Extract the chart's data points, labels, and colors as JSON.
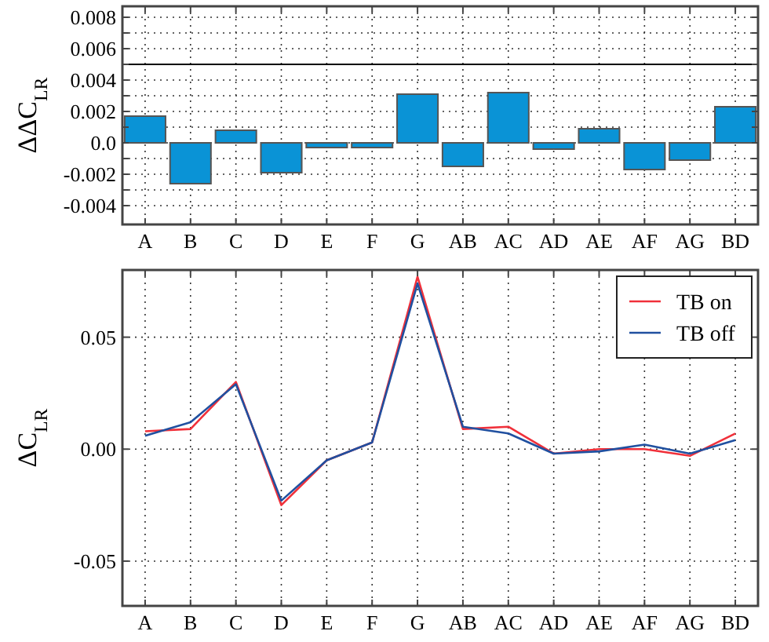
{
  "chart_data": [
    {
      "type": "bar",
      "ylabel": "ΔΔC$_{LR}$",
      "categories": [
        "A",
        "B",
        "C",
        "D",
        "E",
        "F",
        "G",
        "AB",
        "AC",
        "AD",
        "AE",
        "AF",
        "AG",
        "BD"
      ],
      "values": [
        0.0017,
        -0.0026,
        0.0008,
        -0.0019,
        -0.0003,
        -0.0003,
        0.0031,
        -0.0015,
        0.0032,
        -0.0004,
        0.0009,
        -0.0017,
        -0.0011,
        0.0023
      ],
      "color": "#0a93d6",
      "ylim": [
        -0.0052,
        0.0087
      ],
      "yticks": [
        -0.004,
        {
          "value": -0.003,
          "label": null
        },
        -0.002,
        {
          "value": -0.001,
          "label": null
        },
        {
          "value": 0.0,
          "label": "0.0"
        },
        {
          "value": 0.001,
          "label": null
        },
        0.002,
        {
          "value": 0.003,
          "label": null
        },
        0.004,
        {
          "value": 0.005,
          "label": null
        },
        0.006,
        {
          "value": 0.007,
          "label": null
        },
        0.008
      ],
      "grid": true,
      "ref_lines": [
        {
          "axis": "y",
          "value": 0.005,
          "color": "#000000"
        }
      ]
    },
    {
      "type": "line",
      "ylabel": "ΔC$_{LR}$",
      "categories": [
        "A",
        "B",
        "C",
        "D",
        "E",
        "F",
        "G",
        "AB",
        "AC",
        "AD",
        "AE",
        "AF",
        "AG",
        "BD"
      ],
      "series": [
        {
          "name": "TB on",
          "color": "#f0303a",
          "values": [
            0.008,
            0.009,
            0.03,
            -0.025,
            -0.005,
            0.003,
            0.077,
            0.009,
            0.01,
            -0.002,
            0.0,
            0.0,
            -0.003,
            0.007
          ]
        },
        {
          "name": "TB off",
          "color": "#2050a0",
          "values": [
            0.006,
            0.012,
            0.029,
            -0.023,
            -0.005,
            0.003,
            0.074,
            0.01,
            0.007,
            -0.002,
            -0.001,
            0.002,
            -0.002,
            0.004
          ]
        }
      ],
      "ylim": [
        -0.07,
        0.08
      ],
      "yticks": [
        {
          "value": -0.05,
          "label": "-0.05"
        },
        {
          "value": 0.0,
          "label": "0.00"
        },
        {
          "value": 0.05,
          "label": "0.05"
        }
      ],
      "grid": true,
      "legend": "top right"
    }
  ]
}
